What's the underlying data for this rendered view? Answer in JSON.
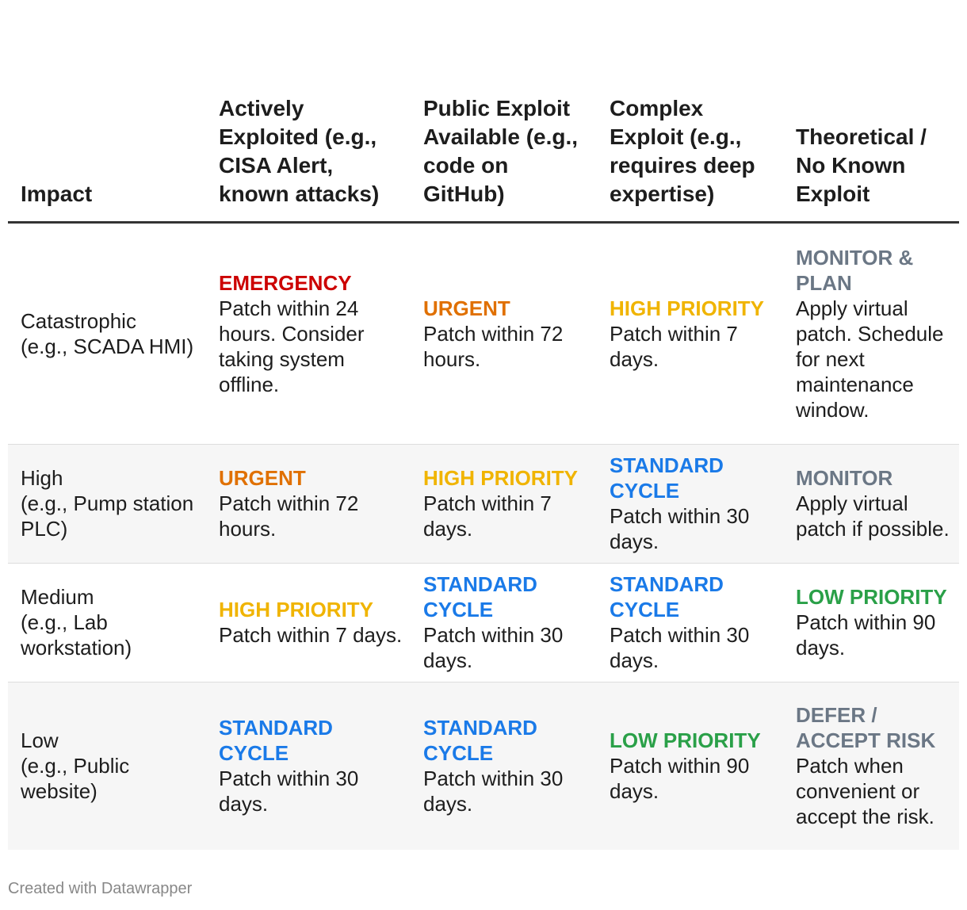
{
  "colors": {
    "EMERGENCY": "#cc0000",
    "URGENT": "#e07000",
    "HIGH PRIORITY": "#f0b400",
    "STANDARD CYCLE": "#1a7ae8",
    "LOW PRIORITY": "#2aa048",
    "MONITOR & PLAN": "#6b7785",
    "MONITOR": "#6b7785",
    "DEFER / ACCEPT RISK": "#6b7785"
  },
  "table": {
    "headers": [
      "Impact",
      "Actively Exploited (e.g., CISA Alert, known attacks)",
      "Public Exploit Available (e.g., code on GitHub)",
      "Complex Exploit (e.g., requires deep expertise)",
      "Theoretical / No Known Exploit"
    ],
    "rows": [
      {
        "impact": "Catastrophic",
        "example": "(e.g., SCADA HMI)",
        "cells": [
          {
            "level": "EMERGENCY",
            "text": "Patch within 24 hours. Consider taking system offline."
          },
          {
            "level": "URGENT",
            "text": "Patch within 72 hours."
          },
          {
            "level": "HIGH PRIORITY",
            "text": "Patch within 7 days."
          },
          {
            "level": "MONITOR & PLAN",
            "text": "Apply virtual patch. Schedule for next maintenance window."
          }
        ]
      },
      {
        "impact": "High",
        "example": "(e.g., Pump station PLC)",
        "cells": [
          {
            "level": "URGENT",
            "text": "Patch within 72 hours."
          },
          {
            "level": "HIGH PRIORITY",
            "text": "Patch within 7 days."
          },
          {
            "level": "STANDARD CYCLE",
            "text": "Patch within 30 days."
          },
          {
            "level": "MONITOR",
            "text": "Apply virtual patch if possible."
          }
        ]
      },
      {
        "impact": "Medium",
        "example": "(e.g., Lab workstation)",
        "cells": [
          {
            "level": "HIGH PRIORITY",
            "text": "Patch within 7 days."
          },
          {
            "level": "STANDARD CYCLE",
            "text": "Patch within 30 days."
          },
          {
            "level": "STANDARD CYCLE",
            "text": "Patch within 30 days."
          },
          {
            "level": "LOW PRIORITY",
            "text": "Patch within 90 days."
          }
        ]
      },
      {
        "impact": "Low",
        "example": "(e.g., Public website)",
        "cells": [
          {
            "level": "STANDARD CYCLE",
            "text": "Patch within 30 days."
          },
          {
            "level": "STANDARD CYCLE",
            "text": "Patch within 30 days."
          },
          {
            "level": "LOW PRIORITY",
            "text": "Patch within 90 days."
          },
          {
            "level": "DEFER / ACCEPT RISK",
            "text": "Patch when convenient or accept the risk."
          }
        ]
      }
    ]
  },
  "footer": {
    "credit": "Created with Datawrapper"
  }
}
